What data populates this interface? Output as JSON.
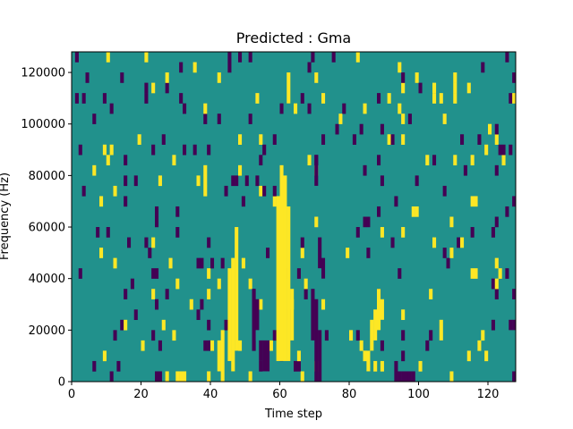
{
  "chart_data": {
    "type": "heatmap",
    "title": "Predicted : Gma",
    "xlabel": "Time step",
    "ylabel": "Frequency (Hz)",
    "xlim": [
      0,
      128
    ],
    "ylim": [
      0,
      128000
    ],
    "x_ticks": [
      0,
      20,
      40,
      60,
      80,
      100,
      120
    ],
    "y_ticks": [
      0,
      20000,
      40000,
      60000,
      80000,
      100000,
      120000
    ],
    "x_tick_labels": [
      "0",
      "20",
      "40",
      "60",
      "80",
      "100",
      "120"
    ],
    "y_tick_labels": [
      "0",
      "20000",
      "40000",
      "60000",
      "80000",
      "100000",
      "120000"
    ],
    "grid": false,
    "value_levels": [
      -1,
      0,
      1
    ],
    "colors": {
      "low": "#440154",
      "mid": "#21918c",
      "high": "#fde725"
    },
    "background_value": 0,
    "cells": [
      {
        "t": 45,
        "f_range": [
          8000,
          44000
        ],
        "v": 1
      },
      {
        "t": 46,
        "f_range": [
          4000,
          48000
        ],
        "v": 1
      },
      {
        "t": 47,
        "f_range": [
          12000,
          60000
        ],
        "v": 1
      },
      {
        "t": 59,
        "f_range": [
          8000,
          72000
        ],
        "v": 1
      },
      {
        "t": 60,
        "f_range": [
          8000,
          84000
        ],
        "v": 1
      },
      {
        "t": 61,
        "f_range": [
          8000,
          80000
        ],
        "v": 1
      },
      {
        "t": 62,
        "f_range": [
          8000,
          68000
        ],
        "v": 1
      },
      {
        "t": 63,
        "f_range": [
          16000,
          36000
        ],
        "v": 1
      },
      {
        "t": 62,
        "f_range": [
          108000,
          120000
        ],
        "v": 1
      },
      {
        "t": 31,
        "f_range": [
          0,
          4000
        ],
        "v": 1
      },
      {
        "t": 32,
        "f_range": [
          0,
          4000
        ],
        "v": 1
      },
      {
        "t": 42,
        "f_range": [
          4000,
          16000
        ],
        "v": 1
      },
      {
        "t": 43,
        "f_range": [
          0,
          20000
        ],
        "v": 1
      },
      {
        "t": 84,
        "f_range": [
          8000,
          12000
        ],
        "v": 1
      },
      {
        "t": 85,
        "f_range": [
          4000,
          12000
        ],
        "v": 1
      },
      {
        "t": 86,
        "f_range": [
          12000,
          24000
        ],
        "v": 1
      },
      {
        "t": 87,
        "f_range": [
          16000,
          28000
        ],
        "v": 1
      },
      {
        "t": 88,
        "f_range": [
          20000,
          36000
        ],
        "v": 1
      },
      {
        "t": 89,
        "f_range": [
          24000,
          32000
        ],
        "v": 1
      },
      {
        "t": 106,
        "f_range": [
          16000,
          24000
        ],
        "v": 1
      },
      {
        "t": 104,
        "f_range": [
          112000,
          116000
        ],
        "v": 1
      },
      {
        "t": 24,
        "f_range": [
          0,
          4000
        ],
        "v": -1
      },
      {
        "t": 25,
        "f_range": [
          0,
          4000
        ],
        "v": -1
      },
      {
        "t": 52,
        "f_range": [
          12000,
          36000
        ],
        "v": -1
      },
      {
        "t": 53,
        "f_range": [
          20000,
          32000
        ],
        "v": -1
      },
      {
        "t": 54,
        "f_range": [
          8000,
          16000
        ],
        "v": -1
      },
      {
        "t": 55,
        "f_range": [
          4000,
          16000
        ],
        "v": -1
      },
      {
        "t": 56,
        "f_range": [
          4000,
          16000
        ],
        "v": -1
      },
      {
        "t": 69,
        "f_range": [
          16000,
          36000
        ],
        "v": -1
      },
      {
        "t": 70,
        "f_range": [
          0,
          32000
        ],
        "v": -1
      },
      {
        "t": 71,
        "f_range": [
          0,
          20000
        ],
        "v": -1
      },
      {
        "t": 70,
        "f_range": [
          76000,
          88000
        ],
        "v": -1
      },
      {
        "t": 71,
        "f_range": [
          44000,
          56000
        ],
        "v": -1
      },
      {
        "t": 72,
        "f_range": [
          40000,
          48000
        ],
        "v": -1
      },
      {
        "t": 93,
        "f_range": [
          0,
          8000
        ],
        "v": -1
      },
      {
        "t": 94,
        "f_range": [
          0,
          4000
        ],
        "v": -1
      },
      {
        "t": 95,
        "f_range": [
          0,
          4000
        ],
        "v": -1
      },
      {
        "t": 96,
        "f_range": [
          0,
          4000
        ],
        "v": -1
      },
      {
        "t": 97,
        "f_range": [
          0,
          4000
        ],
        "v": -1
      },
      {
        "t": 98,
        "f_range": [
          0,
          4000
        ],
        "v": -1
      },
      {
        "t": 126,
        "f_range": [
          20000,
          24000
        ],
        "v": -1
      },
      {
        "t": 127,
        "f_range": [
          20000,
          24000
        ],
        "v": -1
      },
      {
        "t": 127,
        "f_range": [
          0,
          4000
        ],
        "v": -1
      }
    ]
  }
}
